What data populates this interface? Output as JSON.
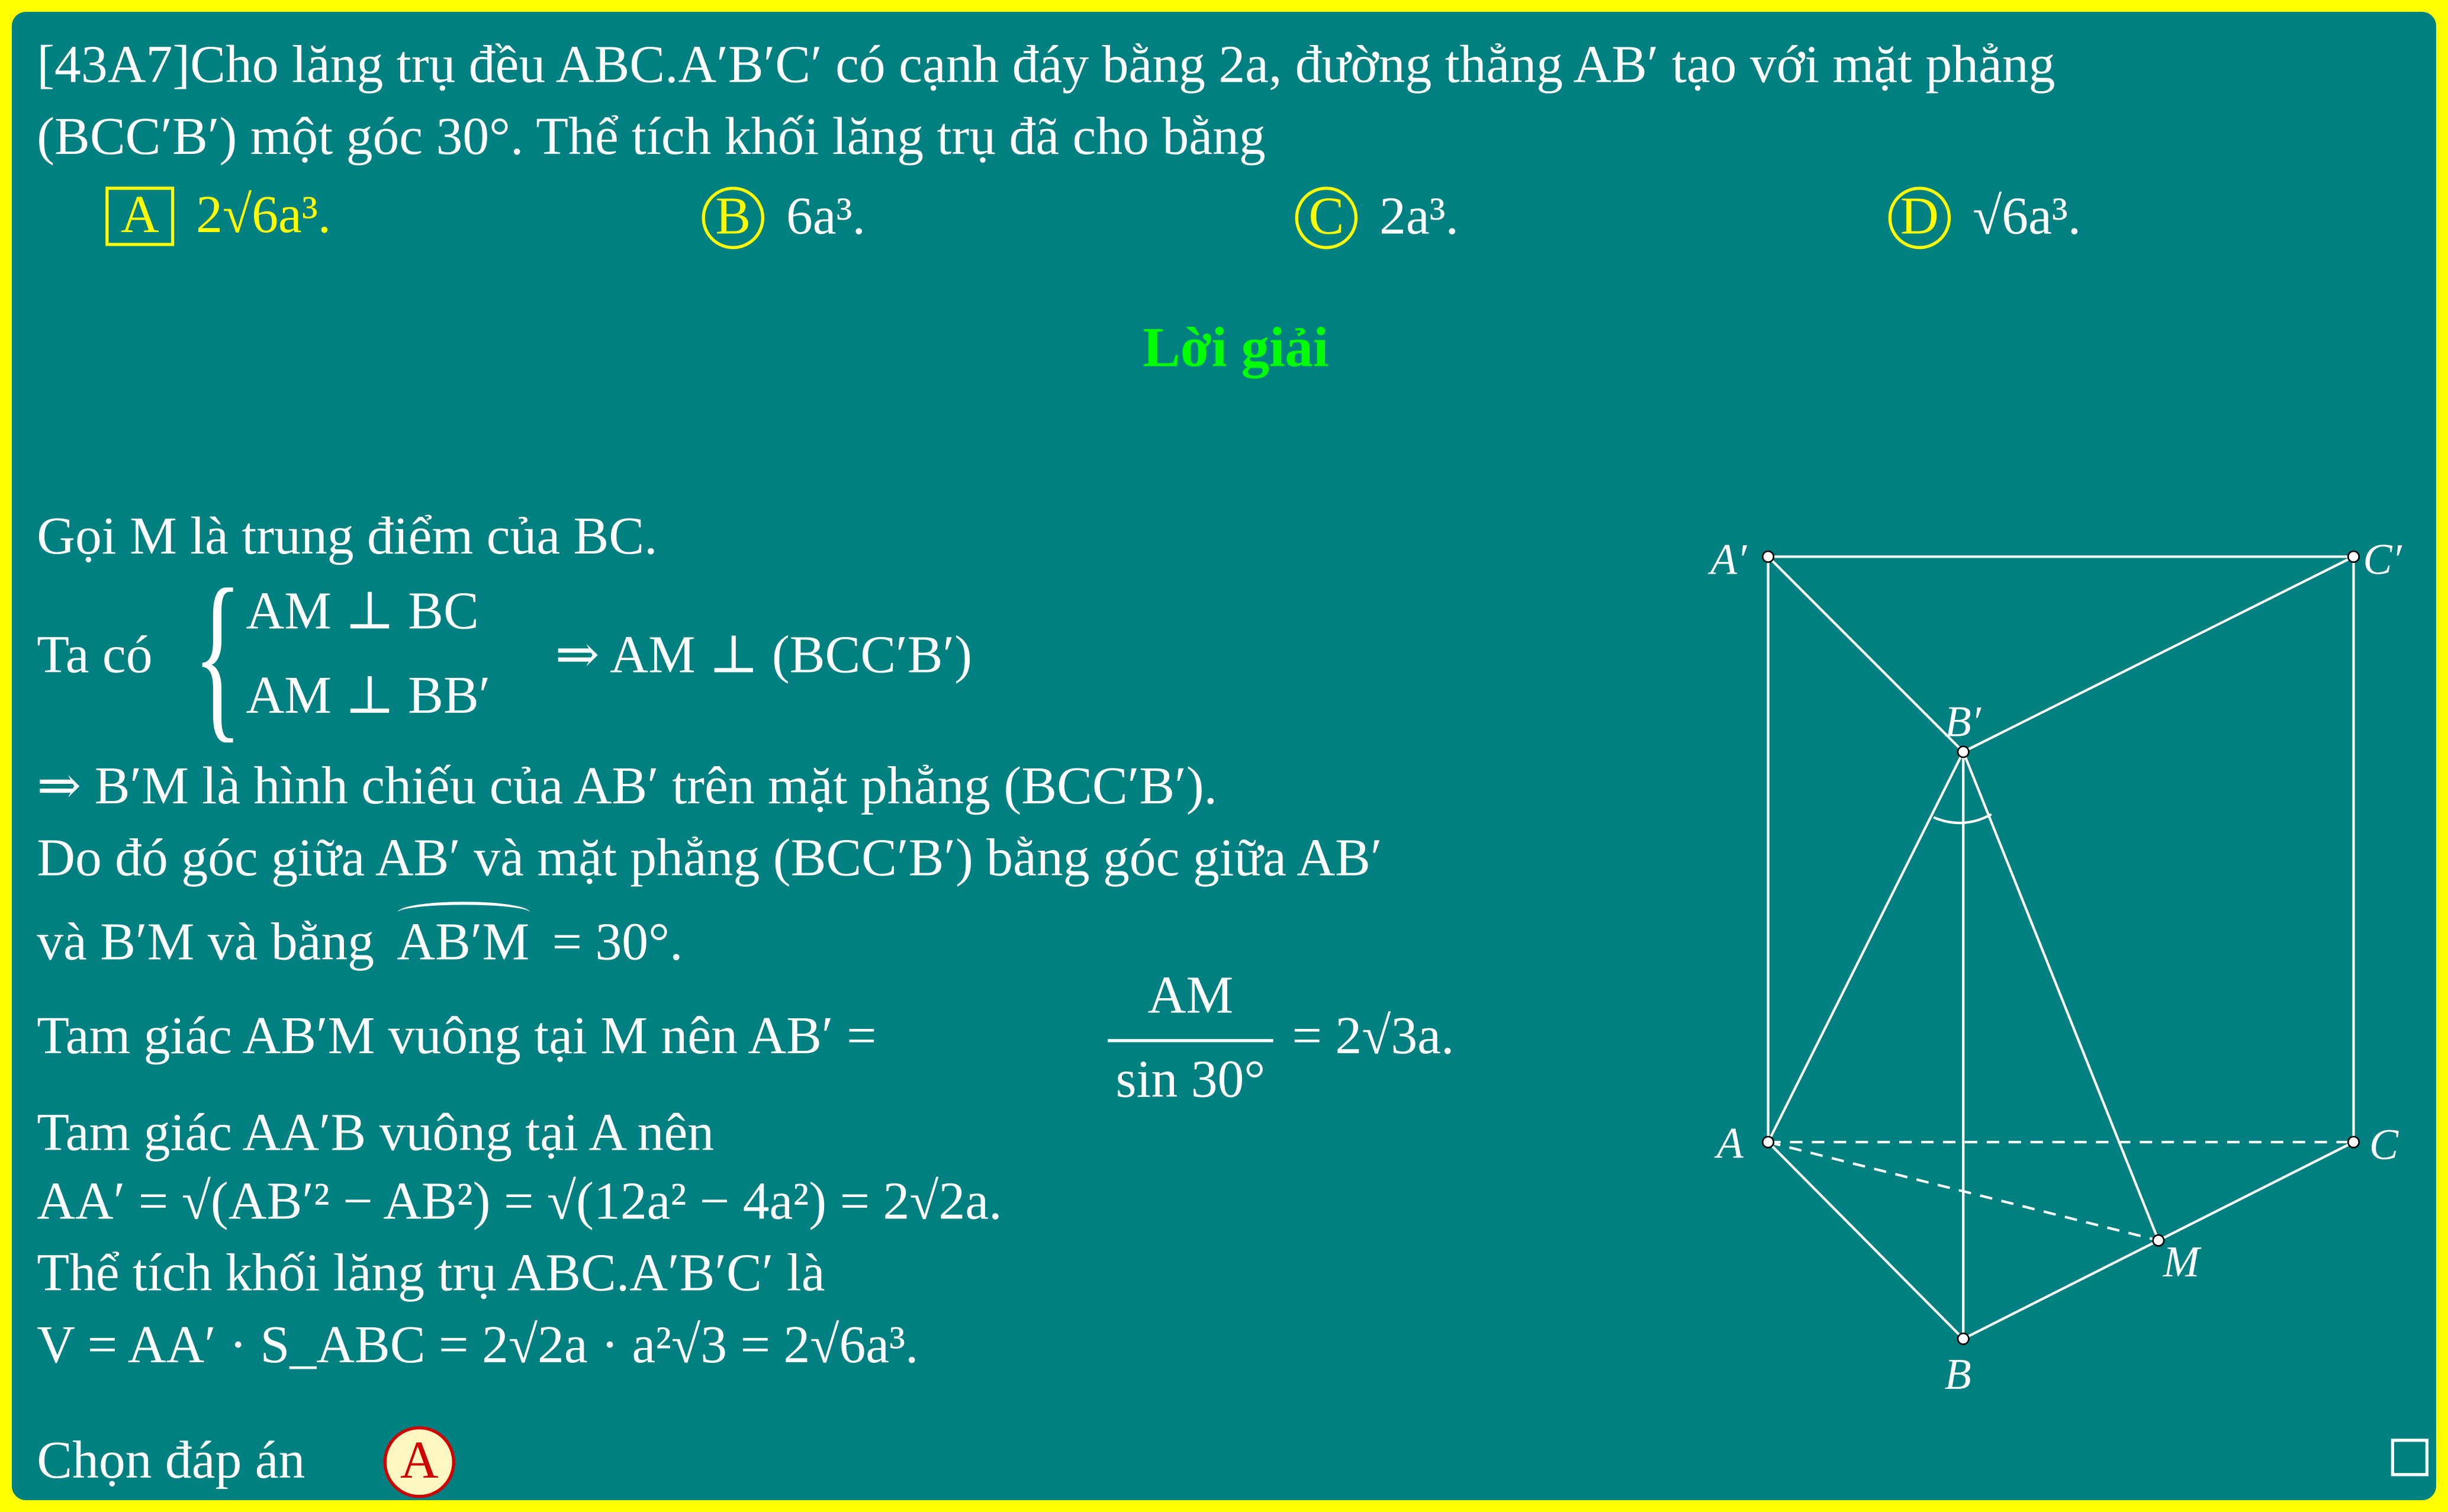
{
  "question": {
    "line1": "[43A7]Cho lăng trụ đều ABC.A′B′C′ có cạnh đáy bằng 2a, đường thẳng AB′ tạo với mặt phẳng",
    "line2": "(BCC′B′) một góc 30°. Thể tích khối lăng trụ đã cho bằng"
  },
  "choices": [
    {
      "letter": "A",
      "text": "2√6a³."
    },
    {
      "letter": "B",
      "text": "6a³."
    },
    {
      "letter": "C",
      "text": "2a³."
    },
    {
      "letter": "D",
      "text": "√6a³."
    }
  ],
  "solution_title": "Lời giải",
  "solution": {
    "l1": "Gọi M là trung điểm của BC.",
    "ta_co": "Ta có",
    "sys1": "AM ⊥ BC",
    "sys2": "AM ⊥ BB′",
    "implies": "⇒ AM ⊥ (BCC′B′)",
    "l3": "⇒ B′M là hình chiếu của AB′ trên mặt phẳng (BCC′B′).",
    "l4": "Do đó góc giữa AB′ và mặt phẳng (BCC′B′) bằng góc giữa AB′",
    "l5a": "và B′M và bằng",
    "l5angle": "AB′M",
    "l5b": "= 30°.",
    "l6a": "Tam giác AB′M vuông tại M nên AB′ =",
    "l6num": "AM",
    "l6den": "sin 30°",
    "l6b": "= 2√3a.",
    "l7": "Tam giác AA′B vuông tại A nên",
    "l8": "AA′ = √(AB′² − AB²) = √(12a² − 4a²) = 2√2a.",
    "l9": "Thể tích khối lăng trụ ABC.A′B′C′ là",
    "l10": "V = AA′ · S_ABC = 2√2a · a²√3 = 2√6a³.",
    "choose": "Chọn đáp án",
    "answer": "A"
  },
  "figure": {
    "labels": {
      "A1": "A′",
      "C1": "C′",
      "B1": "B′",
      "A": "A",
      "C": "C",
      "M": "M",
      "B": "B"
    }
  },
  "colors": {
    "background": "#008080",
    "frame": "#ffff00",
    "title": "#00ff00",
    "answer": "#d00000"
  }
}
